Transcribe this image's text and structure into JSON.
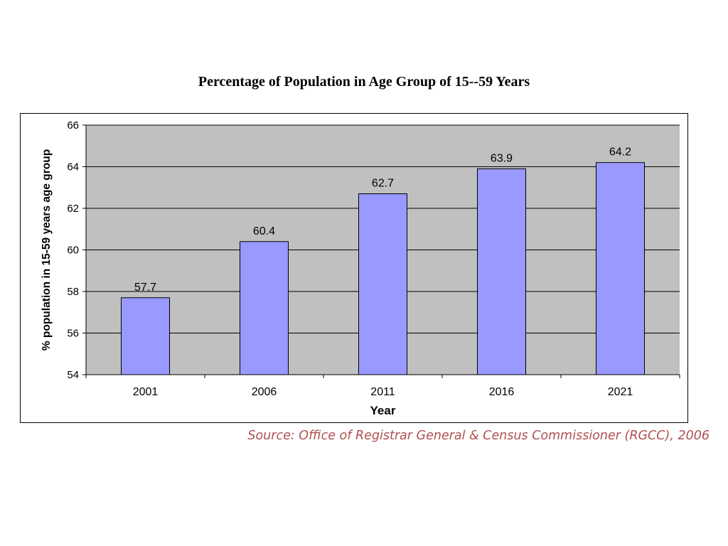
{
  "colors": {
    "bar_fill": "#9999ff",
    "plot_bg": "#c0c0c0",
    "gridline": "#000000",
    "source_text": "#b05050"
  },
  "chart_data": {
    "type": "bar",
    "title": "Percentage of Population in Age Group of 15--59 Years",
    "xlabel": "Year",
    "ylabel": "% population in 15-59 years age group",
    "categories": [
      "2001",
      "2006",
      "2011",
      "2016",
      "2021"
    ],
    "values": [
      57.7,
      60.4,
      62.7,
      63.9,
      64.2
    ],
    "data_labels": [
      "57.7",
      "60.4",
      "62.7",
      "63.9",
      "64.2"
    ],
    "ylim": [
      54,
      66
    ],
    "yticks": [
      54,
      56,
      58,
      60,
      62,
      64,
      66
    ],
    "grid": true,
    "legend": false
  },
  "source": "Source: Office of Registrar General & Census Commissioner (RGCC), 2006"
}
